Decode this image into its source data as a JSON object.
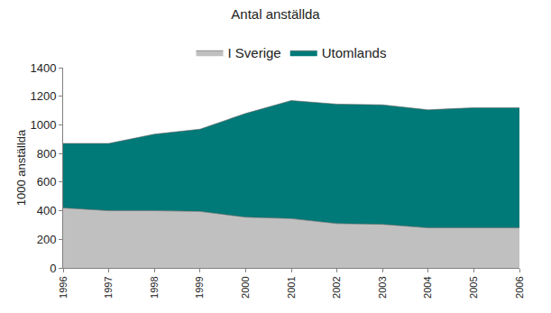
{
  "chart_data": {
    "type": "area",
    "stacked": true,
    "title": "Antal anställda",
    "y_label": "1000 anställda",
    "x": [
      1996,
      1997,
      1998,
      1999,
      2000,
      2001,
      2002,
      2003,
      2004,
      2005,
      2006
    ],
    "series": [
      {
        "name": "I Sverige",
        "color": "#c0c0c0",
        "values": [
          420,
          400,
          400,
          395,
          355,
          345,
          310,
          305,
          280,
          280,
          280
        ]
      },
      {
        "name": "Utomlands",
        "color": "#007a78",
        "values": [
          450,
          470,
          535,
          575,
          725,
          825,
          835,
          835,
          825,
          840,
          840
        ]
      }
    ],
    "xlim": [
      1996,
      2006
    ],
    "xticks": [
      1996,
      1997,
      1998,
      1999,
      2000,
      2001,
      2002,
      2003,
      2004,
      2005,
      2006
    ],
    "ylim": [
      0,
      1400
    ],
    "yticks": [
      0,
      200,
      400,
      600,
      800,
      1000,
      1200,
      1400
    ],
    "grid": false,
    "legend": "top"
  }
}
